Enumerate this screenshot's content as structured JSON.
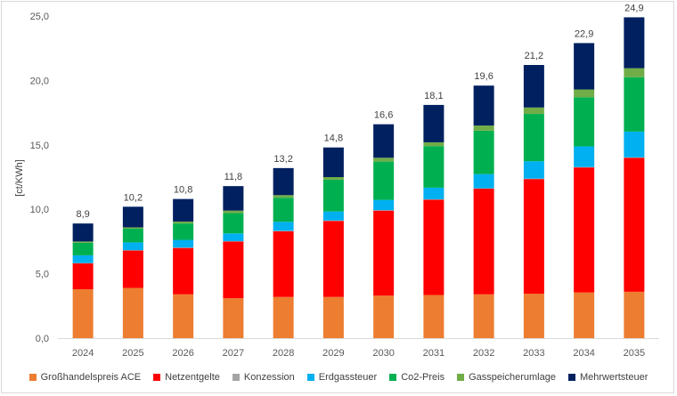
{
  "chart_data": {
    "type": "bar",
    "stacked": true,
    "title": "",
    "xlabel": "",
    "ylabel": "[ct/KWh]",
    "ylim": [
      0,
      25
    ],
    "yticks": [
      "0,0",
      "5,0",
      "10,0",
      "15,0",
      "20,0",
      "25,0"
    ],
    "grid": false,
    "legend_position": "bottom",
    "categories": [
      "2024",
      "2025",
      "2026",
      "2027",
      "2028",
      "2029",
      "2030",
      "2031",
      "2032",
      "2033",
      "2034",
      "2035"
    ],
    "series": [
      {
        "name": "Großhandelspreis ACE",
        "color": "#ed7d31",
        "values": [
          3.8,
          3.9,
          3.4,
          3.1,
          3.2,
          3.2,
          3.3,
          3.35,
          3.4,
          3.45,
          3.55,
          3.6
        ]
      },
      {
        "name": "Netzentgelte",
        "color": "#ff0000",
        "values": [
          2.0,
          2.9,
          3.6,
          4.4,
          5.1,
          5.9,
          6.6,
          7.4,
          8.2,
          8.9,
          9.7,
          10.4
        ]
      },
      {
        "name": "Konzession",
        "color": "#a5a5a5",
        "values": [
          0.03,
          0.03,
          0.03,
          0.03,
          0.03,
          0.03,
          0.03,
          0.03,
          0.03,
          0.03,
          0.03,
          0.03
        ]
      },
      {
        "name": "Erdgassteuer",
        "color": "#00b0f0",
        "values": [
          0.6,
          0.6,
          0.6,
          0.6,
          0.7,
          0.7,
          0.8,
          0.9,
          1.1,
          1.35,
          1.6,
          2.0
        ]
      },
      {
        "name": "Co2-Preis",
        "color": "#00b050",
        "values": [
          0.97,
          1.07,
          1.27,
          1.57,
          1.87,
          2.47,
          2.97,
          3.22,
          3.37,
          3.67,
          3.82,
          4.22
        ]
      },
      {
        "name": "Gasspeicherumlage",
        "color": "#70ad47",
        "values": [
          0.1,
          0.1,
          0.15,
          0.2,
          0.2,
          0.2,
          0.3,
          0.3,
          0.4,
          0.5,
          0.6,
          0.7
        ]
      },
      {
        "name": "Mehrwertsteuer",
        "color": "#002060",
        "values": [
          1.4,
          1.6,
          1.75,
          1.9,
          2.1,
          2.3,
          2.6,
          2.9,
          3.1,
          3.3,
          3.6,
          3.95
        ]
      }
    ],
    "totals": [
      8.9,
      10.2,
      10.8,
      11.8,
      13.2,
      14.8,
      16.6,
      18.1,
      19.6,
      21.2,
      22.9,
      24.9
    ],
    "total_labels": [
      "8,9",
      "10,2",
      "10,8",
      "11,8",
      "13,2",
      "14,8",
      "16,6",
      "18,1",
      "19,6",
      "21,2",
      "22,9",
      "24,9"
    ]
  }
}
